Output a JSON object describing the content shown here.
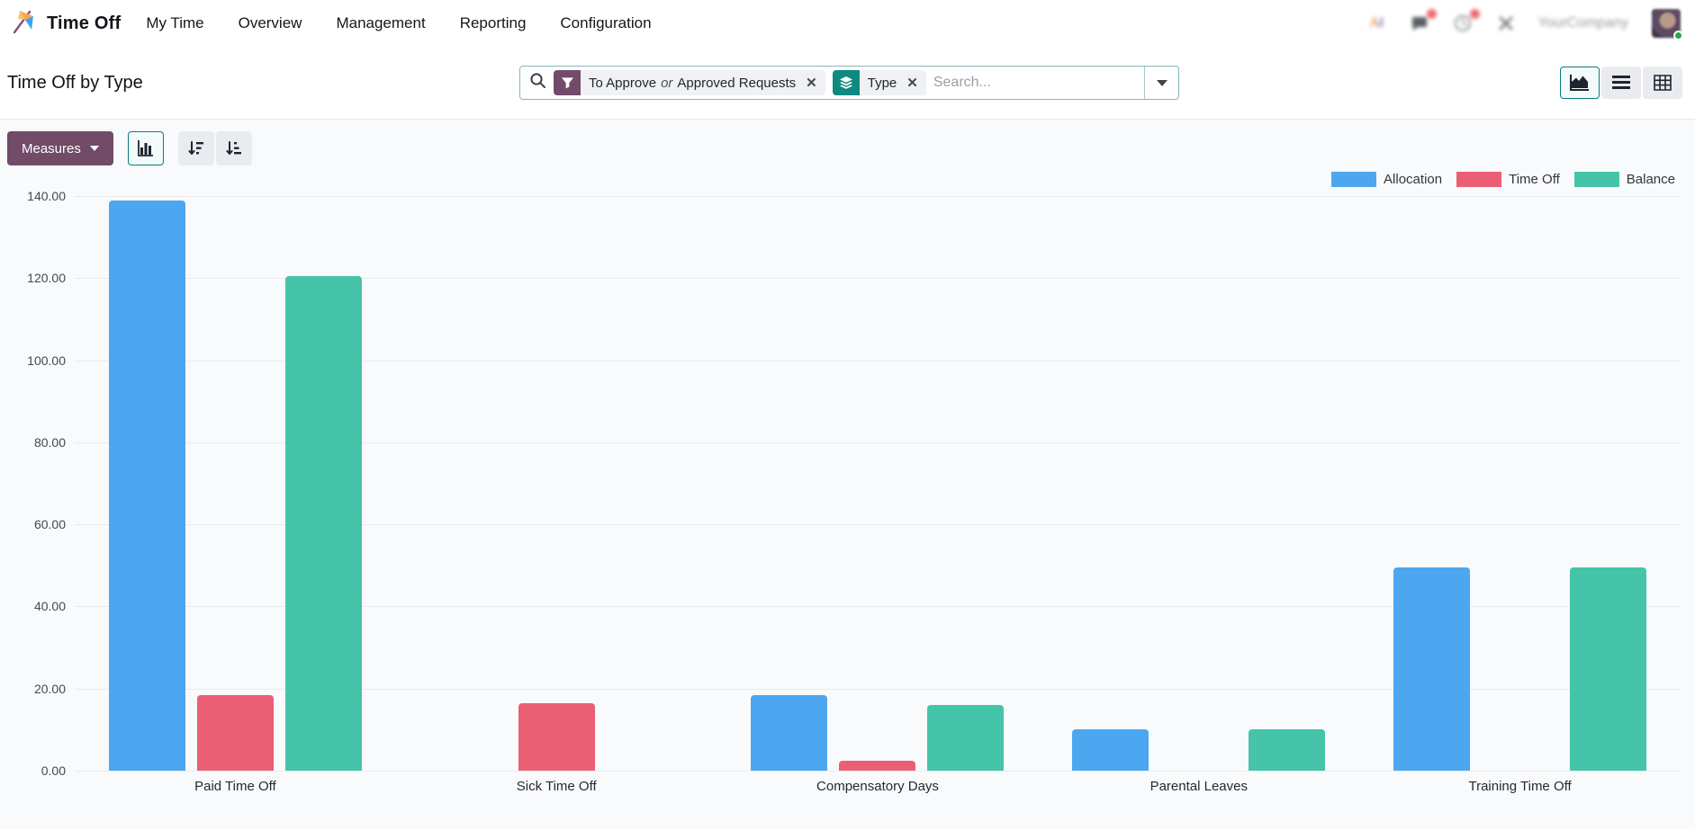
{
  "navbar": {
    "app_name": "Time Off",
    "menu_items": [
      "My Time",
      "Overview",
      "Management",
      "Reporting",
      "Configuration"
    ],
    "systray": {
      "company": "YourCompany",
      "icons": [
        "ai-icon",
        "chat-icon",
        "clock-icon",
        "x-icon",
        "avatar"
      ],
      "badge_color": "#e5484d"
    }
  },
  "control_panel": {
    "title": "Time Off by Type",
    "search": {
      "facets": [
        {
          "icon": "filter-icon",
          "color": "#714B67",
          "text_before": "To Approve",
          "connector": "or",
          "text_after": "Approved Requests"
        },
        {
          "icon": "layers-icon",
          "color": "#0F8A80",
          "label": "Type"
        }
      ],
      "placeholder": "Search..."
    },
    "view_switcher": [
      {
        "name": "graph",
        "active": true
      },
      {
        "name": "list",
        "active": false
      },
      {
        "name": "pivot",
        "active": false
      }
    ]
  },
  "toolbar": {
    "measures_label": "Measures"
  },
  "chart_data": {
    "type": "bar",
    "title": "Time Off by Type",
    "categories": [
      "Paid Time Off",
      "Sick Time Off",
      "Compensatory Days",
      "Parental Leaves",
      "Training Time Off"
    ],
    "series": [
      {
        "name": "Allocation",
        "color": "#4DA7F0",
        "values": [
          139,
          0,
          18.5,
          10,
          49.5
        ]
      },
      {
        "name": "Time Off",
        "color": "#EA5F74",
        "values": [
          18.5,
          16.5,
          2.5,
          0,
          0
        ]
      },
      {
        "name": "Balance",
        "color": "#45C4AA",
        "values": [
          120.5,
          0,
          16,
          10,
          49.5
        ]
      }
    ],
    "ylim": [
      0,
      140
    ],
    "yticks": [
      "140.00",
      "120.00",
      "100.00",
      "80.00",
      "60.00",
      "40.00",
      "20.00",
      "0.00"
    ],
    "grid": true,
    "legend_position": "top-right",
    "xlabel": "",
    "ylabel": ""
  }
}
